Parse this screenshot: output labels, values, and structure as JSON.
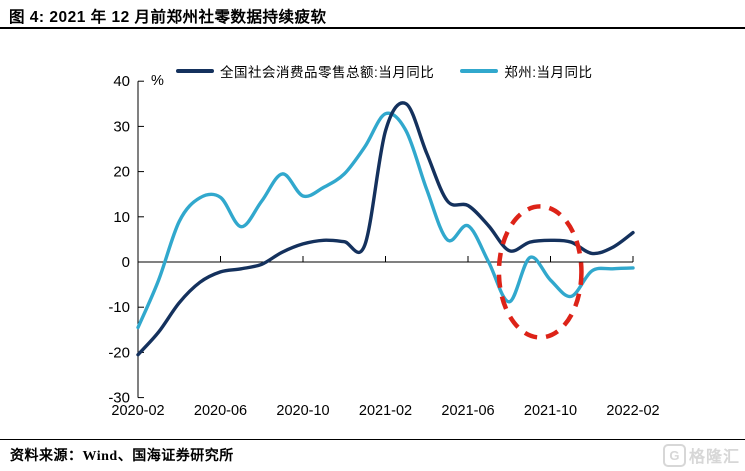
{
  "header": {
    "title": "图 4:  2021 年 12 月前郑州社零数据持续疲软"
  },
  "legend": [
    {
      "label": "全国社会消费品零售总额:当月同比",
      "color": "#14315d"
    },
    {
      "label": "郑州:当月同比",
      "color": "#31a8cd"
    }
  ],
  "footer": {
    "source": "资料来源：Wind、国海证券研究所",
    "logo_letter": "G",
    "logo_text": "格隆汇"
  },
  "chart_data": {
    "type": "line",
    "title": "2021 年 12 月前郑州社零数据持续疲软",
    "unit_label": "%",
    "x": [
      "2020-02",
      "2020-03",
      "2020-04",
      "2020-05",
      "2020-06",
      "2020-07",
      "2020-08",
      "2020-09",
      "2020-10",
      "2020-11",
      "2020-12",
      "2021-01",
      "2021-02",
      "2021-03",
      "2021-04",
      "2021-05",
      "2021-06",
      "2021-07",
      "2021-08",
      "2021-09",
      "2021-10",
      "2021-11",
      "2021-12",
      "2022-01",
      "2022-02"
    ],
    "x_tick_labels": [
      "2020-02",
      "2020-06",
      "2020-10",
      "2021-02",
      "2021-06",
      "2021-10",
      "2022-02"
    ],
    "y_ticks": [
      40,
      30,
      20,
      10,
      0,
      -10,
      -20,
      -30
    ],
    "ylim": [
      -30,
      40
    ],
    "grid": false,
    "legend_position": "top",
    "series": [
      {
        "name": "全国社会消费品零售总额:当月同比",
        "color": "#14315d",
        "values": [
          -20.5,
          -15.5,
          -9.0,
          -4.5,
          -2.2,
          -1.5,
          -0.5,
          2.2,
          4.0,
          4.8,
          4.5,
          3.8,
          29.0,
          35.0,
          24.0,
          13.5,
          12.5,
          8.0,
          2.5,
          4.4,
          4.8,
          4.4,
          1.9,
          3.2,
          6.5
        ]
      },
      {
        "name": "郑州:当月同比",
        "color": "#31a8cd",
        "values": [
          -14.5,
          -4.0,
          9.0,
          14.2,
          14.3,
          7.8,
          13.5,
          19.5,
          14.6,
          16.5,
          19.5,
          25.5,
          32.8,
          29.0,
          16.0,
          4.9,
          8.0,
          0.0,
          -8.8,
          1.0,
          -4.0,
          -7.6,
          -2.0,
          -1.5,
          -1.3
        ]
      }
    ],
    "annotation": {
      "type": "dashed-ellipse",
      "color": "#dd2318",
      "center_month_index": 19.5,
      "center_value": -2.2,
      "rx_months": 2.0,
      "ry_units": 14.5
    }
  }
}
